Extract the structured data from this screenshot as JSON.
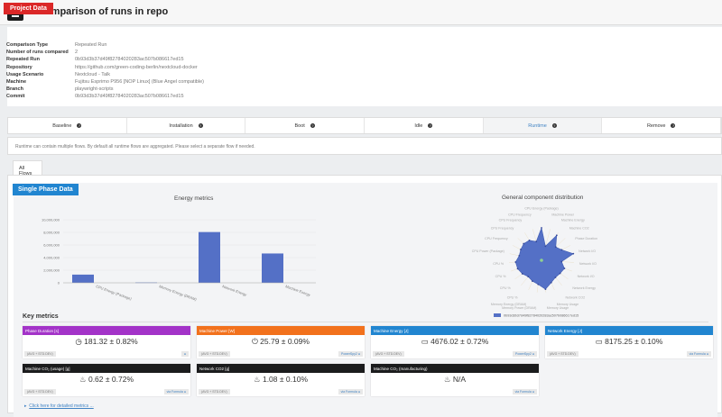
{
  "header": {
    "title": "Comparison of runs in repo",
    "menu_icon": "hamburger-icon"
  },
  "project": {
    "label": "Project Data",
    "rows": [
      {
        "k": "Comparison Type",
        "v": "Repeated Run"
      },
      {
        "k": "Number of runs compared",
        "v": "2"
      },
      {
        "k": "Repeated Run",
        "v": "0b93d3b37d49f82784020283ac507b086617ed15"
      },
      {
        "k": "Repository",
        "v": "https://github.com/green-coding-berlin/nextcloud-docker"
      },
      {
        "k": "Usage Scenario",
        "v": "Nextcloud - Talk"
      },
      {
        "k": "Machine",
        "v": "Fujitsu Esprimo P956 [NOP Linux] (Blue Angel compatible)"
      },
      {
        "k": "Branch",
        "v": "playwright-scripts"
      },
      {
        "k": "Commit",
        "v": "0b93d3b37d49f82784020283ac507b086617ed15"
      }
    ]
  },
  "steps": [
    {
      "label": "Baseline"
    },
    {
      "label": "Installation"
    },
    {
      "label": "Boot"
    },
    {
      "label": "Idle"
    },
    {
      "label": "Runtime",
      "active": true
    },
    {
      "label": "Remove"
    }
  ],
  "info_text": "Runtime can contain multiple flows. By default all runtime flows are aggregated. Please select a separate flow if needed.",
  "flow_tab": "All Flows",
  "phase_label": "Single Phase Data",
  "chart_data": [
    {
      "type": "bar",
      "title": "Energy metrics",
      "categories": [
        "CPU Energy (Package)",
        "Memory Energy (DRAM)",
        "Network Energy",
        "Machine Energy"
      ],
      "values": [
        1300000,
        60000,
        8050000,
        4650000
      ],
      "ylim": [
        0,
        10000000
      ],
      "yticks": [
        "0",
        "2,000,000",
        "4,000,000",
        "6,000,000",
        "8,000,000",
        "10,000,000"
      ],
      "grid": true
    },
    {
      "type": "radar",
      "title": "General component distribution",
      "categories": [
        "CPU Energy (Package)",
        "Machine Power",
        "Machine Energy",
        "Machine CO2",
        "Phase Duration",
        "Network I/O",
        "Network I/O",
        "Network I/O",
        "Network Energy",
        "Network CO2",
        "Memory Usage",
        "Memory Usage",
        "Memory Power (DRAM)",
        "Memory Energy (DRAM)",
        "CPU %",
        "CPU %",
        "CPU %",
        "CPU %",
        "CPU Power (Package)",
        "CPU Frequency",
        "CPU Frequency",
        "CPU Frequency",
        "CPU Frequency"
      ],
      "series": [
        {
          "name": "0b93d3b37d49f82784020283ac507b086617ed15",
          "values": [
            1.0,
            0.45,
            0.9,
            0.6,
            0.7,
            1.0,
            0.62,
            0.75,
            0.7,
            0.68,
            0.75,
            0.9,
            0.75,
            0.7,
            0.65,
            0.72,
            0.78,
            0.8,
            0.7,
            0.72,
            0.75,
            0.72,
            0.6
          ]
        }
      ],
      "color": "#5470c6",
      "legend": "bottom"
    }
  ],
  "key_metrics": {
    "title": "Key metrics",
    "cards": [
      {
        "title": "Phase Duration [s]",
        "value": "181.32 ± 0.82%",
        "left": "(AVG + STD.DEV)",
        "right": "",
        "color": "#a333c8",
        "icon": "clock-icon"
      },
      {
        "title": "Machine Power [W]",
        "value": "25.79 ± 0.09%",
        "left": "(AVG + STD.DEV)",
        "right": "PowerSpy2",
        "color": "#f2711c",
        "icon": "power-icon"
      },
      {
        "title": "Machine Energy [J]",
        "value": "4676.02 ± 0.72%",
        "left": "(AVG + STD.DEV)",
        "right": "PowerSpy2",
        "color": "#2185d0",
        "icon": "battery-icon"
      },
      {
        "title": "Network Energy [J]",
        "value": "8175.25 ± 0.10%",
        "left": "(AVG + STD.DEV)",
        "right": "via Formula",
        "color": "#2185d0",
        "icon": "battery-icon"
      },
      {
        "title": "Machine CO₂ (usage) [g]",
        "value": "0.62 ± 0.72%",
        "left": "(AVG + STD.DEV)",
        "right": "via Formula",
        "color": "#1b1c1d",
        "icon": "fire-icon"
      },
      {
        "title": "Network CO2 [g]",
        "value": "1.08 ± 0.10%",
        "left": "(AVG + STD.DEV)",
        "right": "via Formula",
        "color": "#1b1c1d",
        "icon": "fire-icon"
      },
      {
        "title": "Machine CO₂ (manufacturing)",
        "value": "N/A",
        "left": "",
        "right": "via Formula",
        "color": "#1b1c1d",
        "icon": "fire-icon"
      }
    ]
  },
  "detail_link": "Click here for detailed metrics ..."
}
